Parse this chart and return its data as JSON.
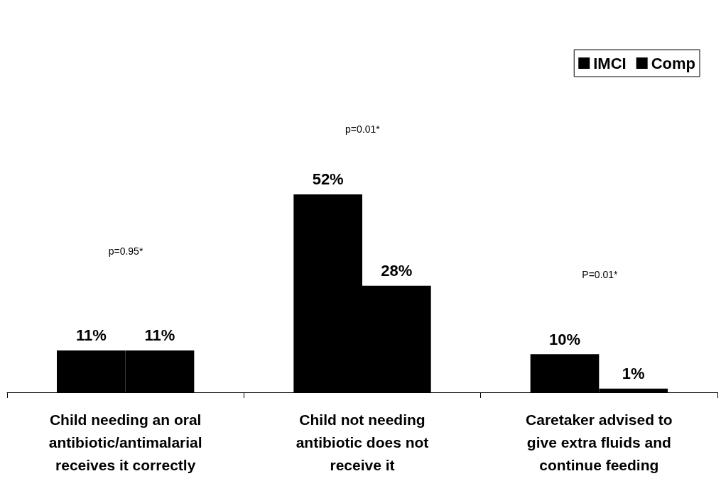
{
  "chart_data": {
    "type": "bar",
    "categories": [
      "Child needing an oral antibiotic/antimalarial receives it correctly",
      "Child not needing antibiotic does not receive it",
      "Caretaker advised to give extra fluids and continue feeding"
    ],
    "series": [
      {
        "name": "IMCI",
        "color": "#000000",
        "values": [
          11,
          52,
          10
        ],
        "value_labels": [
          "11%",
          "52%",
          "10%"
        ]
      },
      {
        "name": "Comp",
        "color": "#000000",
        "values": [
          11,
          28,
          1
        ],
        "value_labels": [
          "11%",
          "28%",
          "1%"
        ]
      }
    ],
    "tick_labels": "x",
    "grid": false,
    "legend": "top right",
    "annotations": [
      "p=0.95*",
      "p=0.01*",
      "P=0.01*"
    ]
  }
}
